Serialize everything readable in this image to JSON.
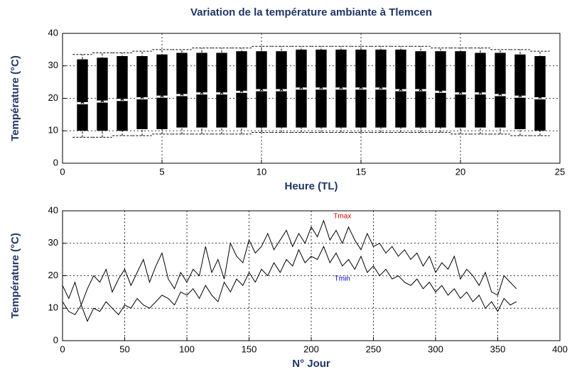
{
  "chart_data": [
    {
      "type": "box",
      "title": "Variation de la température ambiante à Tlemcen",
      "xlabel": "Heure (TL)",
      "ylabel": "Température (°C)",
      "x": [
        1,
        2,
        3,
        4,
        5,
        6,
        7,
        8,
        9,
        10,
        11,
        12,
        13,
        14,
        15,
        16,
        17,
        18,
        19,
        20,
        21,
        22,
        23,
        24
      ],
      "values": [
        18.5,
        19,
        19.5,
        20,
        20.5,
        21,
        21.5,
        21.5,
        22,
        22.5,
        22.5,
        23,
        23,
        23,
        23,
        23,
        22.5,
        22.5,
        22,
        21.5,
        21.5,
        21,
        20.5,
        20
      ],
      "q_low": [
        10,
        10,
        10,
        10.5,
        10.5,
        11,
        11,
        11,
        11,
        11,
        11,
        11,
        11,
        11,
        11,
        11,
        11,
        11,
        11,
        11,
        11,
        11,
        10.5,
        10
      ],
      "q_high": [
        32,
        32.5,
        33,
        33,
        33.5,
        34,
        34,
        34,
        34.5,
        34.5,
        34.5,
        35,
        35,
        35,
        35,
        35,
        35,
        34.5,
        34.5,
        34.5,
        34,
        34,
        33.5,
        33
      ],
      "w_low": [
        8,
        8,
        8.5,
        8.5,
        9,
        9,
        9,
        9,
        9,
        9.5,
        9.5,
        9.5,
        9.5,
        9.5,
        9.5,
        9.5,
        9.5,
        9.5,
        9.5,
        9,
        9,
        9,
        8.5,
        8.5
      ],
      "w_high": [
        33.5,
        34,
        34,
        34.5,
        35,
        35,
        35.5,
        35.5,
        35.5,
        36,
        36,
        36,
        36,
        36,
        36,
        36,
        36,
        36,
        35.5,
        35.5,
        35.5,
        35,
        35,
        34.5
      ],
      "color": "#000000",
      "xlim": [
        0,
        25
      ],
      "xticks": [
        0,
        5,
        10,
        15,
        20,
        25
      ],
      "ylim": [
        0,
        40
      ],
      "yticks": [
        0,
        10,
        20,
        30,
        40
      ],
      "grid": true
    },
    {
      "type": "line",
      "xlabel": "N° Jour",
      "ylabel": "Température (°C)",
      "x": [
        0,
        5,
        10,
        15,
        20,
        25,
        30,
        35,
        40,
        45,
        50,
        55,
        60,
        65,
        70,
        75,
        80,
        85,
        90,
        95,
        100,
        105,
        110,
        115,
        120,
        125,
        130,
        135,
        140,
        145,
        150,
        155,
        160,
        165,
        170,
        175,
        180,
        185,
        190,
        195,
        200,
        205,
        210,
        215,
        220,
        225,
        230,
        235,
        240,
        245,
        250,
        255,
        260,
        265,
        270,
        275,
        280,
        285,
        290,
        295,
        300,
        305,
        310,
        315,
        320,
        325,
        330,
        335,
        340,
        345,
        350,
        355,
        360,
        365
      ],
      "series": [
        {
          "name": "Tmax",
          "color": "#000000",
          "label_color": "#e00000",
          "values": [
            17,
            13,
            18,
            11,
            16,
            20,
            18,
            22,
            15,
            19,
            22,
            17,
            21,
            25,
            18,
            23,
            27,
            19,
            16,
            21,
            18,
            22,
            20,
            29,
            21,
            25,
            19,
            30,
            26,
            24,
            31,
            27,
            29,
            33,
            28,
            31,
            34,
            29,
            33,
            30,
            35,
            32,
            37,
            31,
            34,
            30,
            35,
            31,
            28,
            33,
            29,
            30,
            27,
            29,
            26,
            28,
            25,
            27,
            23,
            26,
            21,
            24,
            22,
            26,
            19,
            22,
            20,
            17,
            21,
            15,
            14,
            20,
            18,
            16
          ]
        },
        {
          "name": "Tmin",
          "color": "#000000",
          "label_color": "#0000c0",
          "values": [
            12,
            9,
            8,
            11,
            6,
            10,
            9,
            12,
            10,
            8,
            11,
            10,
            13,
            11,
            10,
            12,
            14,
            13,
            11,
            15,
            14,
            16,
            13,
            17,
            14,
            12,
            18,
            15,
            19,
            17,
            21,
            18,
            22,
            20,
            24,
            21,
            25,
            23,
            28,
            24,
            26,
            25,
            29,
            24,
            27,
            23,
            25,
            22,
            26,
            21,
            23,
            20,
            22,
            19,
            20,
            18,
            17,
            19,
            16,
            18,
            15,
            17,
            14,
            16,
            13,
            15,
            12,
            14,
            10,
            12,
            9,
            13,
            11,
            12
          ]
        }
      ],
      "xlim": [
        0,
        400
      ],
      "xticks": [
        0,
        50,
        100,
        150,
        200,
        250,
        300,
        350,
        400
      ],
      "ylim": [
        0,
        40
      ],
      "yticks": [
        0,
        10,
        20,
        30,
        40
      ],
      "grid": true
    }
  ]
}
